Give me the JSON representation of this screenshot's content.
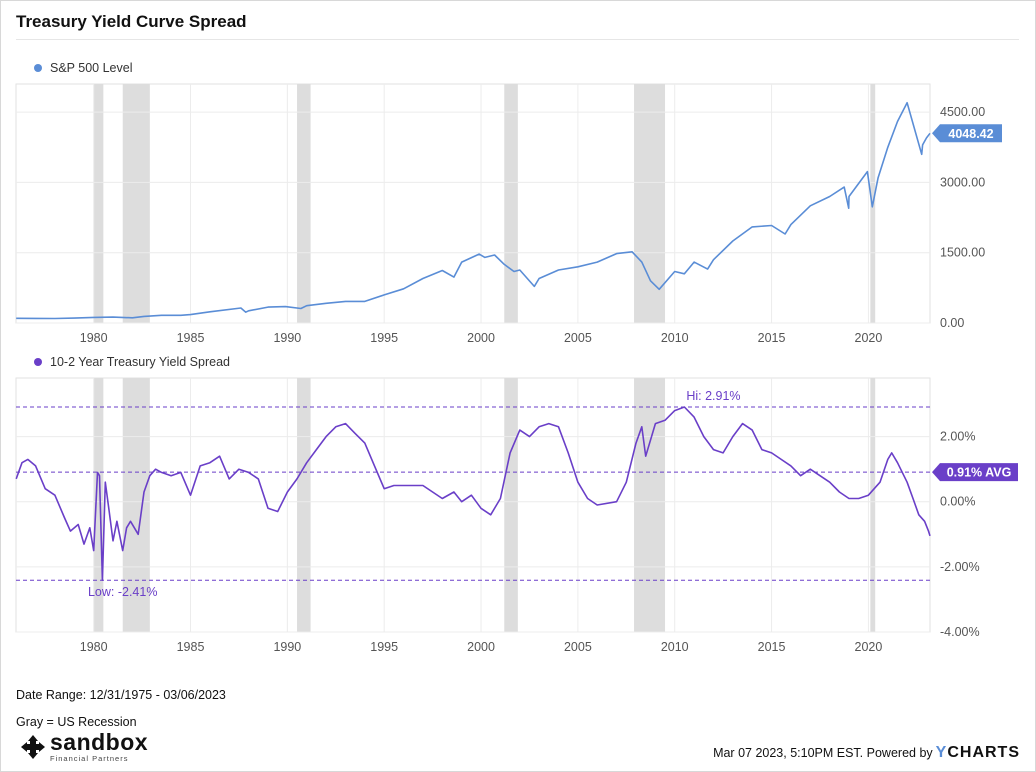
{
  "title": "Treasury Yield Curve Spread",
  "footer": {
    "date_range": "Date Range: 12/31/1975 - 03/06/2023",
    "gray_note": "Gray = US Recession",
    "timestamp": "Mar 07 2023, 5:10PM EST.",
    "powered_by": "Powered by",
    "brand_y": "Y",
    "brand_rest": "CHARTS"
  },
  "logo": {
    "word": "sandbox",
    "sub": "Financial Partners"
  },
  "colors": {
    "sp500": "#5a8dd6",
    "spread": "#6a3fc8",
    "recession": "#dddddd",
    "grid": "#ececec"
  },
  "chart_data": [
    {
      "type": "line",
      "legend": "S&P 500 Level",
      "x_ticks": [
        "1980",
        "1985",
        "1990",
        "1995",
        "2000",
        "2005",
        "2010",
        "2015",
        "2020"
      ],
      "y_ticks": [
        "0.00",
        "1500.00",
        "3000.00",
        "4500.00"
      ],
      "ylim": [
        0,
        5100
      ],
      "xlim": [
        1975.99,
        2023.18
      ],
      "last_value": 4048.42,
      "last_label": "4048.42",
      "recessions": [
        [
          1980.0,
          1980.5
        ],
        [
          1981.5,
          1982.9
        ],
        [
          1990.5,
          1991.2
        ],
        [
          2001.2,
          2001.9
        ],
        [
          2007.9,
          2009.5
        ],
        [
          2020.1,
          2020.35
        ]
      ],
      "series": [
        {
          "x": [
            1976,
            1977,
            1978,
            1979,
            1980,
            1981,
            1982,
            1982.6,
            1983.5,
            1984.5,
            1985,
            1986,
            1987.6,
            1987.85,
            1988,
            1989,
            1989.9,
            1990.7,
            1991,
            1992,
            1993,
            1994,
            1995,
            1996,
            1997,
            1998,
            1998.6,
            1999,
            1999.9,
            2000.2,
            2000.7,
            2001.2,
            2001.7,
            2002,
            2002.75,
            2003,
            2004,
            2005,
            2006,
            2007,
            2007.8,
            2008.3,
            2008.75,
            2009.2,
            2010,
            2010.5,
            2011,
            2011.7,
            2012,
            2013,
            2014,
            2015,
            2015.7,
            2016,
            2017,
            2018,
            2018.75,
            2018.98,
            2019,
            2019.95,
            2020.2,
            2020.5,
            2021,
            2021.5,
            2022,
            2022.75,
            2022.8,
            2023,
            2023.18
          ],
          "y": [
            100,
            98,
            96,
            105,
            120,
            125,
            110,
            140,
            165,
            165,
            180,
            240,
            320,
            230,
            260,
            340,
            350,
            310,
            370,
            420,
            460,
            460,
            600,
            730,
            950,
            1120,
            980,
            1300,
            1470,
            1400,
            1450,
            1250,
            1100,
            1130,
            780,
            950,
            1130,
            1200,
            1300,
            1480,
            1520,
            1300,
            900,
            720,
            1100,
            1050,
            1300,
            1150,
            1350,
            1750,
            2050,
            2080,
            1900,
            2100,
            2500,
            2700,
            2900,
            2450,
            2700,
            3230,
            2480,
            3100,
            3750,
            4300,
            4700,
            3600,
            3800,
            3950,
            4048
          ]
        }
      ]
    },
    {
      "type": "line",
      "legend": "10-2 Year Treasury Yield Spread",
      "x_ticks": [
        "1980",
        "1985",
        "1990",
        "1995",
        "2000",
        "2005",
        "2010",
        "2015",
        "2020"
      ],
      "y_ticks": [
        "2.00%",
        "0.00%",
        "-2.00%",
        "-4.00%"
      ],
      "ylim": [
        -4.0,
        3.8
      ],
      "xlim": [
        1975.99,
        2023.18
      ],
      "average": 0.91,
      "avg_label": "0.91% AVG",
      "high": 2.91,
      "high_label": "Hi: 2.91%",
      "low": -2.41,
      "low_label": "Low: -2.41%",
      "recessions": [
        [
          1980.0,
          1980.5
        ],
        [
          1981.5,
          1982.9
        ],
        [
          1990.5,
          1991.2
        ],
        [
          2001.2,
          2001.9
        ],
        [
          2007.9,
          2009.5
        ],
        [
          2020.1,
          2020.35
        ]
      ],
      "series": [
        {
          "x": [
            1976,
            1976.3,
            1976.6,
            1977,
            1977.5,
            1978,
            1978.5,
            1978.8,
            1979.2,
            1979.5,
            1979.8,
            1980.0,
            1980.2,
            1980.3,
            1980.45,
            1980.6,
            1980.8,
            1981.0,
            1981.2,
            1981.5,
            1981.7,
            1981.9,
            1982.3,
            1982.6,
            1982.9,
            1983.2,
            1983.5,
            1984.0,
            1984.5,
            1985.0,
            1985.5,
            1986.0,
            1986.5,
            1987.0,
            1987.5,
            1988,
            1988.5,
            1989.0,
            1989.5,
            1990,
            1990.5,
            1991,
            1991.5,
            1992,
            1992.5,
            1993,
            1993.5,
            1994,
            1994.5,
            1995,
            1995.5,
            1996,
            1997,
            1998,
            1998.6,
            1999,
            1999.5,
            2000,
            2000.5,
            2001,
            2001.5,
            2002,
            2002.5,
            2003,
            2003.5,
            2004,
            2004.5,
            2005,
            2005.5,
            2006,
            2007,
            2007.5,
            2008.0,
            2008.3,
            2008.5,
            2009,
            2009.5,
            2010,
            2010.5,
            2011,
            2011.5,
            2012,
            2012.5,
            2013,
            2013.5,
            2014,
            2014.5,
            2015,
            2015.5,
            2016,
            2016.5,
            2017,
            2017.5,
            2018,
            2018.5,
            2019,
            2019.5,
            2020,
            2020.3,
            2020.6,
            2021,
            2021.2,
            2021.5,
            2022,
            2022.3,
            2022.6,
            2022.9,
            2023.1,
            2023.18
          ],
          "y": [
            0.7,
            1.2,
            1.3,
            1.1,
            0.4,
            0.2,
            -0.5,
            -0.9,
            -0.7,
            -1.3,
            -0.8,
            -1.5,
            0.9,
            0.8,
            -2.41,
            0.6,
            -0.3,
            -1.2,
            -0.6,
            -1.5,
            -0.8,
            -0.6,
            -1.0,
            0.3,
            0.8,
            1.0,
            0.9,
            0.8,
            0.9,
            0.2,
            1.1,
            1.2,
            1.4,
            0.7,
            1.0,
            0.9,
            0.7,
            -0.2,
            -0.3,
            0.3,
            0.7,
            1.2,
            1.6,
            2.0,
            2.3,
            2.4,
            2.1,
            1.8,
            1.1,
            0.4,
            0.5,
            0.5,
            0.5,
            0.1,
            0.3,
            0.0,
            0.2,
            -0.2,
            -0.4,
            0.1,
            1.5,
            2.2,
            2.0,
            2.3,
            2.4,
            2.3,
            1.5,
            0.6,
            0.1,
            -0.1,
            0.0,
            0.6,
            1.8,
            2.3,
            1.4,
            2.4,
            2.5,
            2.8,
            2.91,
            2.6,
            2.0,
            1.6,
            1.5,
            2.0,
            2.4,
            2.2,
            1.6,
            1.5,
            1.3,
            1.1,
            0.8,
            1.0,
            0.8,
            0.6,
            0.3,
            0.1,
            0.1,
            0.2,
            0.4,
            0.6,
            1.3,
            1.5,
            1.2,
            0.6,
            0.1,
            -0.4,
            -0.6,
            -0.9,
            -1.05
          ]
        }
      ]
    }
  ]
}
